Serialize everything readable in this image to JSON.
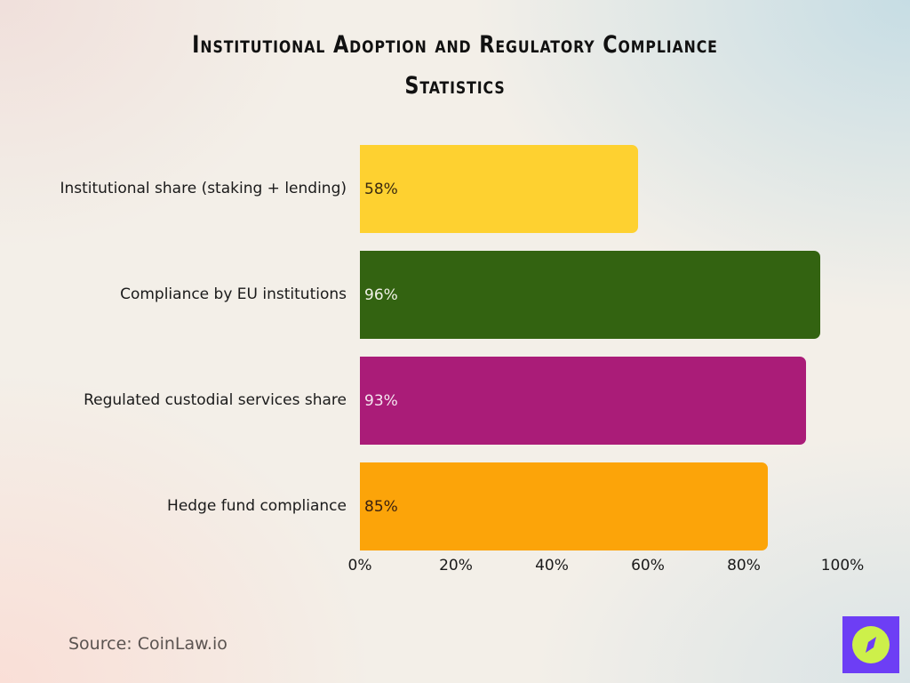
{
  "title": {
    "line1": "Institutional Adoption and Regulatory Compliance",
    "line2": "Statistics"
  },
  "chart_data": {
    "type": "bar",
    "orientation": "horizontal",
    "title": "Institutional Adoption and Regulatory Compliance Statistics",
    "categories": [
      "Institutional share (staking + lending)",
      "Compliance by EU institutions",
      "Regulated custodial services share",
      "Hedge fund compliance"
    ],
    "values": [
      58,
      96,
      93,
      85
    ],
    "value_labels": [
      "58%",
      "96%",
      "93%",
      "85%"
    ],
    "colors": [
      "#fed130",
      "#336311",
      "#aa1c78",
      "#fca409"
    ],
    "label_colors": [
      "#3a2a10",
      "#f2f2e8",
      "#f5e6f0",
      "#3a2010"
    ],
    "xlabel": "",
    "ylabel": "",
    "xlim": [
      0,
      100
    ],
    "x_ticks": [
      "0%",
      "20%",
      "40%",
      "60%",
      "80%",
      "100%"
    ],
    "grid": false,
    "legend": "none"
  },
  "source": "Source: CoinLaw.io",
  "logo": {
    "icon": "compass-icon",
    "bg_color": "#6d3ef5",
    "circle_color": "#cdf04a"
  }
}
